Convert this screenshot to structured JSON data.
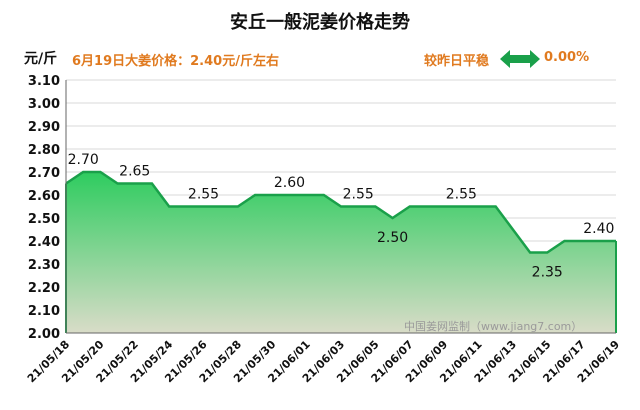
{
  "title": "安丘一般泥姜价格走势",
  "unit_label": "元/斤",
  "price_note": "6月19日大姜价格：2.40元/斤左右",
  "compare_label": "较昨日平稳",
  "change_value": "0.00%",
  "watermark": "中国姜网监制（www.jiang7.com）",
  "icons": {
    "compare_arrow": "double-arrow-icon"
  },
  "colors": {
    "line": "#1aa04a",
    "fill_top": "#2ecc5f",
    "fill_bottom": "#d9dcc8",
    "accent": "#e07a1f"
  },
  "chart_data": {
    "type": "area",
    "title": "安丘一般泥姜价格走势",
    "ylabel": "元/斤",
    "xlabel": "",
    "ylim": [
      2.0,
      3.1
    ],
    "yticks": [
      "2.00",
      "2.10",
      "2.20",
      "2.30",
      "2.40",
      "2.50",
      "2.60",
      "2.70",
      "2.80",
      "2.90",
      "3.00",
      "3.10"
    ],
    "x": [
      "21/05/18",
      "21/05/19",
      "21/05/20",
      "21/05/21",
      "21/05/22",
      "21/05/23",
      "21/05/24",
      "21/05/25",
      "21/05/26",
      "21/05/27",
      "21/05/28",
      "21/05/29",
      "21/05/30",
      "21/05/31",
      "21/06/01",
      "21/06/02",
      "21/06/03",
      "21/06/04",
      "21/06/05",
      "21/06/06",
      "21/06/07",
      "21/06/08",
      "21/06/09",
      "21/06/10",
      "21/06/11",
      "21/06/12",
      "21/06/13",
      "21/06/14",
      "21/06/15",
      "21/06/16",
      "21/06/17",
      "21/06/18",
      "21/06/19"
    ],
    "xtick_labels": [
      "21/05/18",
      "21/05/20",
      "21/05/22",
      "21/05/24",
      "21/05/26",
      "21/05/28",
      "21/05/30",
      "21/06/01",
      "21/06/03",
      "21/06/05",
      "21/06/07",
      "21/06/09",
      "21/06/11",
      "21/06/13",
      "21/06/15",
      "21/06/17",
      "21/06/19"
    ],
    "values": [
      2.65,
      2.7,
      2.7,
      2.65,
      2.65,
      2.65,
      2.55,
      2.55,
      2.55,
      2.55,
      2.55,
      2.6,
      2.6,
      2.6,
      2.6,
      2.6,
      2.55,
      2.55,
      2.55,
      2.5,
      2.55,
      2.55,
      2.55,
      2.55,
      2.55,
      2.55,
      2.45,
      2.35,
      2.35,
      2.4,
      2.4,
      2.4,
      2.4
    ],
    "annotations": [
      {
        "index": 1,
        "text": "2.70",
        "pos": "above"
      },
      {
        "index": 4,
        "text": "2.65",
        "pos": "above"
      },
      {
        "index": 8,
        "text": "2.55",
        "pos": "above"
      },
      {
        "index": 13,
        "text": "2.60",
        "pos": "above"
      },
      {
        "index": 17,
        "text": "2.55",
        "pos": "above"
      },
      {
        "index": 19,
        "text": "2.50",
        "pos": "below"
      },
      {
        "index": 23,
        "text": "2.55",
        "pos": "above"
      },
      {
        "index": 28,
        "text": "2.35",
        "pos": "below"
      },
      {
        "index": 31,
        "text": "2.40",
        "pos": "above"
      }
    ],
    "grid": true,
    "legend": "none"
  }
}
